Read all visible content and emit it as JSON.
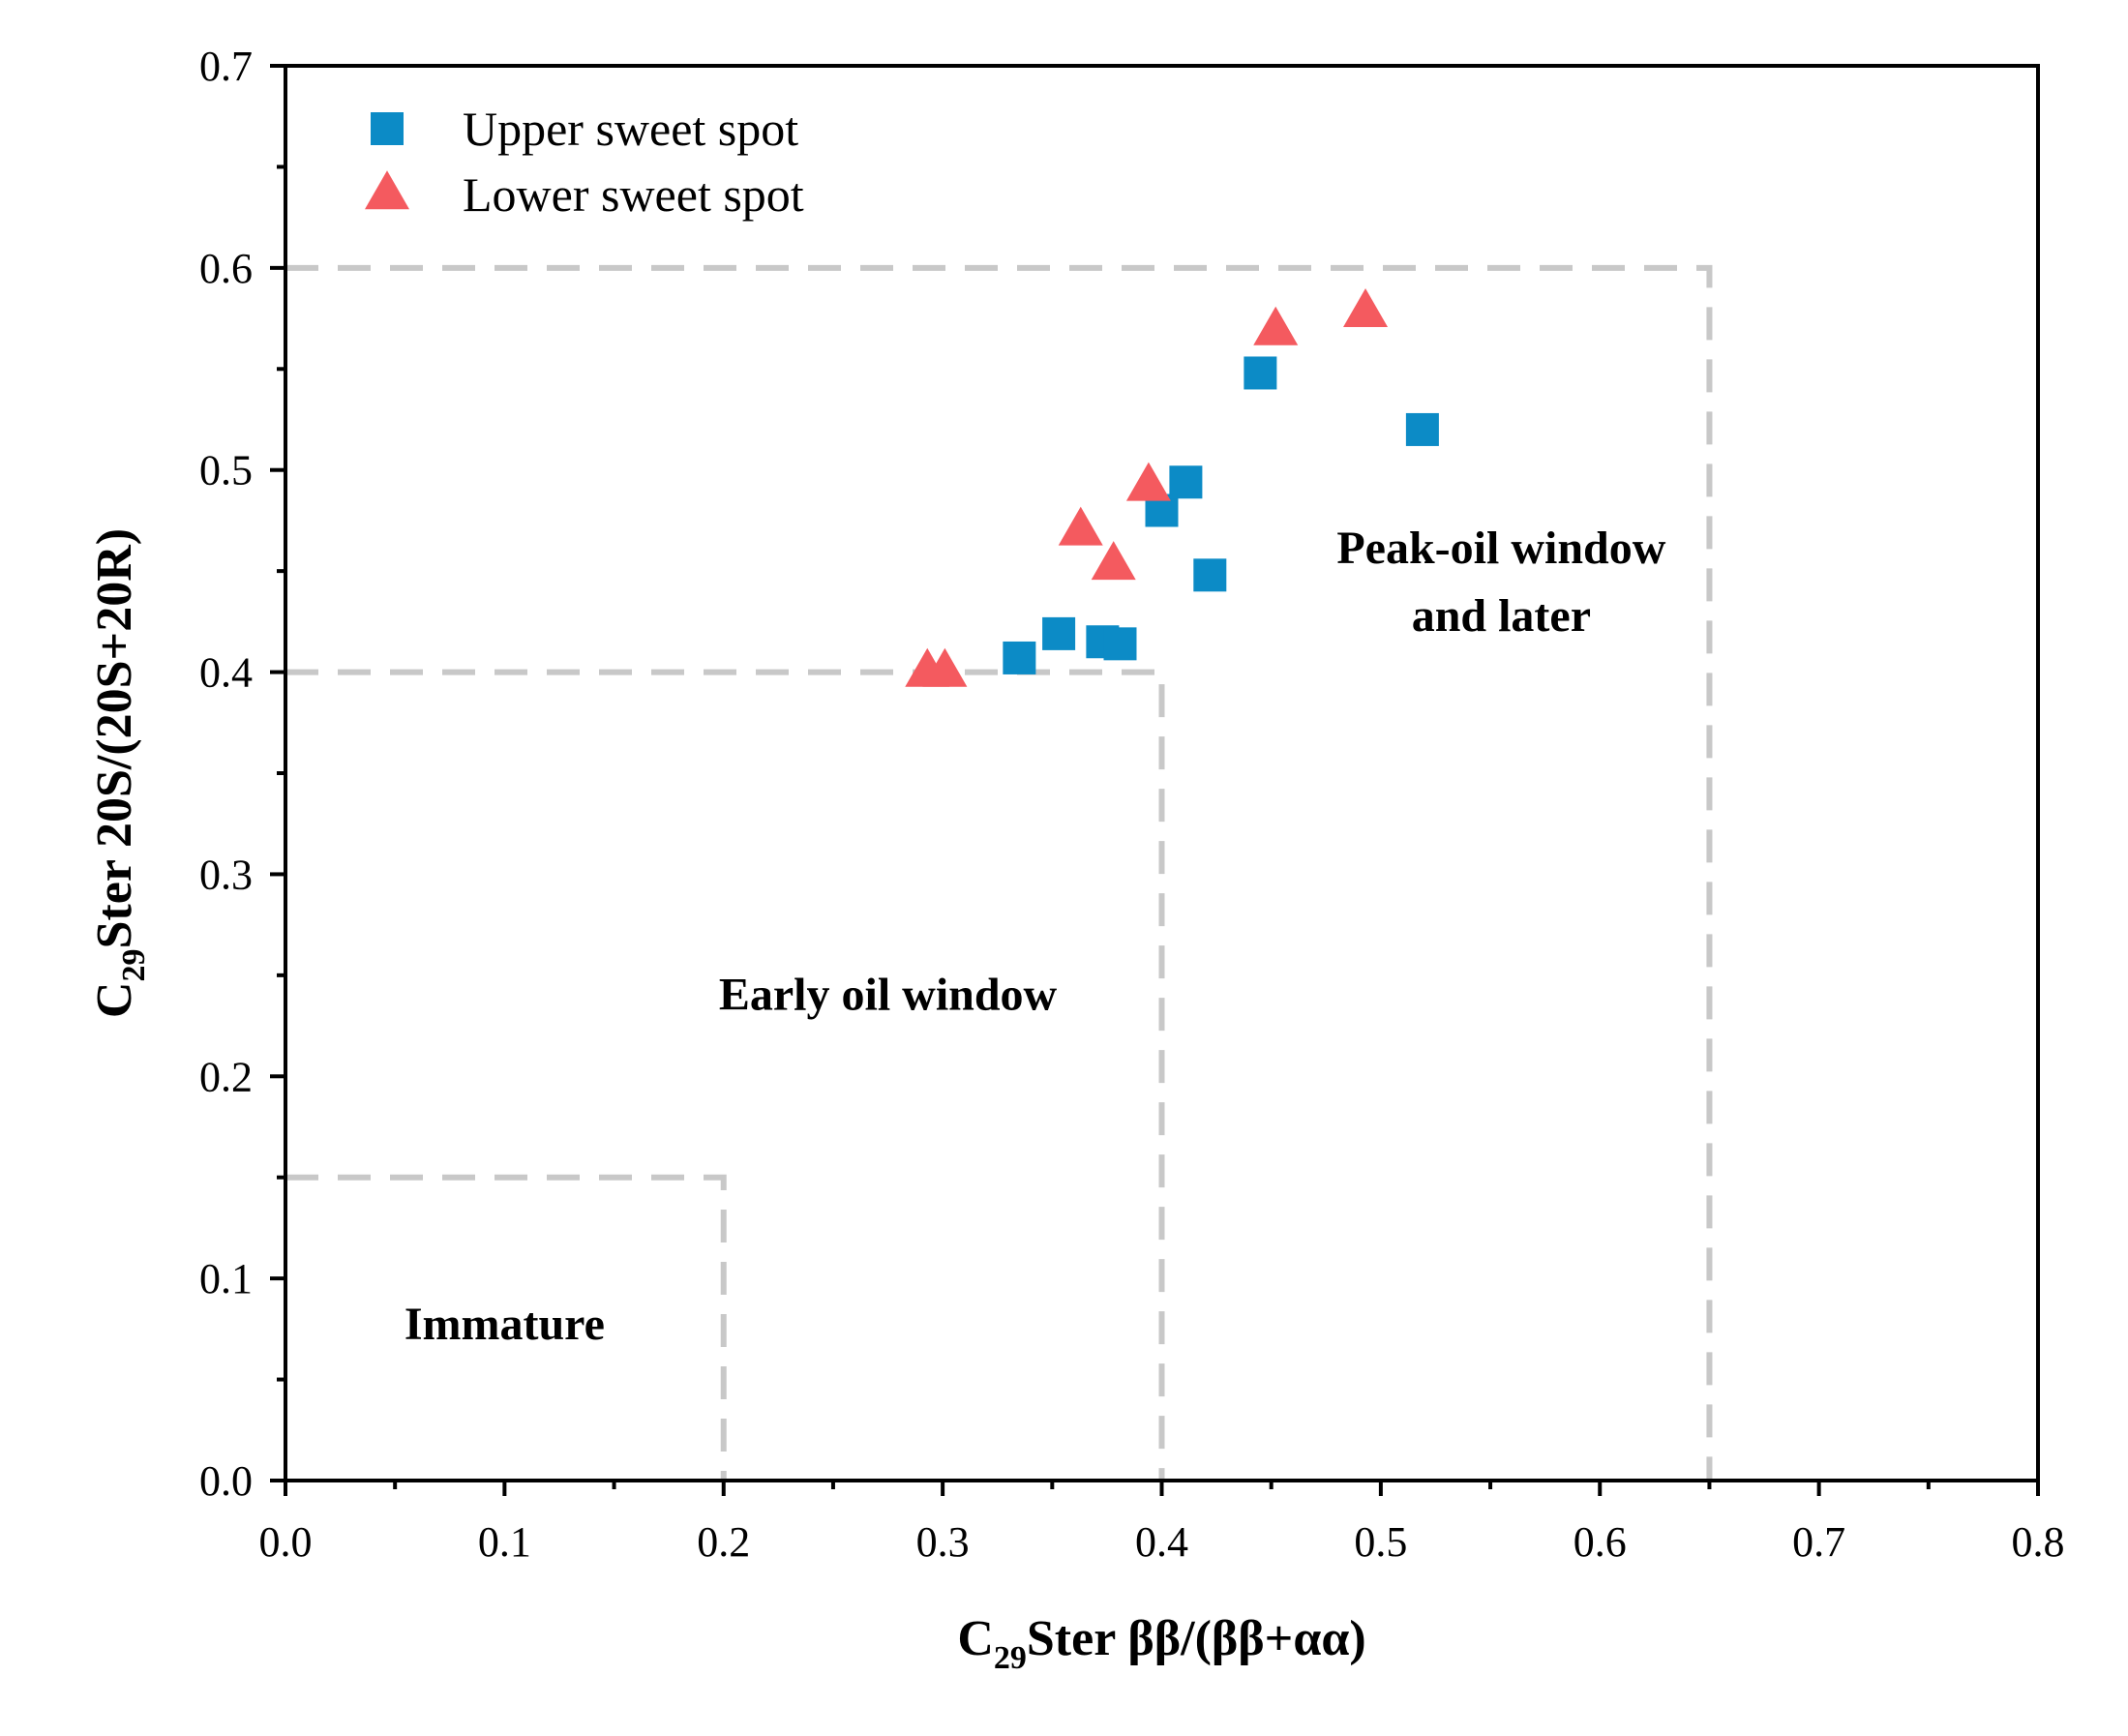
{
  "chart_data": {
    "type": "scatter",
    "xlabel": {
      "prefix": "C",
      "sub": "29",
      "rest": "Ster ββ/(ββ+αα)"
    },
    "ylabel": {
      "prefix": "C",
      "sub": "29",
      "rest": "Ster 20S/(20S+20R)"
    },
    "xlim": [
      0.0,
      0.8
    ],
    "ylim": [
      0.0,
      0.7
    ],
    "xticks": [
      "0.0",
      "0.1",
      "0.2",
      "0.3",
      "0.4",
      "0.5",
      "0.6",
      "0.7",
      "0.8"
    ],
    "yticks": [
      "0.0",
      "0.1",
      "0.2",
      "0.3",
      "0.4",
      "0.5",
      "0.6",
      "0.7"
    ],
    "grid": false,
    "legend_position": "top-left",
    "series": [
      {
        "name": "Upper sweet spot",
        "marker": "square",
        "color": "#0c8bc6",
        "points": [
          {
            "x": 0.335,
            "y": 0.407
          },
          {
            "x": 0.353,
            "y": 0.419
          },
          {
            "x": 0.373,
            "y": 0.415
          },
          {
            "x": 0.381,
            "y": 0.414
          },
          {
            "x": 0.4,
            "y": 0.48
          },
          {
            "x": 0.411,
            "y": 0.494
          },
          {
            "x": 0.422,
            "y": 0.448
          },
          {
            "x": 0.445,
            "y": 0.548
          },
          {
            "x": 0.519,
            "y": 0.52
          }
        ]
      },
      {
        "name": "Lower sweet spot",
        "marker": "triangle",
        "color": "#f45a5f",
        "points": [
          {
            "x": 0.293,
            "y": 0.4
          },
          {
            "x": 0.301,
            "y": 0.4
          },
          {
            "x": 0.363,
            "y": 0.47
          },
          {
            "x": 0.378,
            "y": 0.453
          },
          {
            "x": 0.394,
            "y": 0.492
          },
          {
            "x": 0.452,
            "y": 0.569
          },
          {
            "x": 0.493,
            "y": 0.578
          }
        ]
      }
    ],
    "boundaries": [
      {
        "name": "immature-boundary",
        "path": [
          [
            0.0,
            0.15
          ],
          [
            0.2,
            0.15
          ],
          [
            0.2,
            0.0
          ]
        ]
      },
      {
        "name": "early-oil-boundary",
        "path": [
          [
            0.0,
            0.4
          ],
          [
            0.4,
            0.4
          ],
          [
            0.4,
            0.0
          ]
        ]
      },
      {
        "name": "peak-oil-boundary",
        "path": [
          [
            0.0,
            0.6
          ],
          [
            0.65,
            0.6
          ],
          [
            0.65,
            0.0
          ]
        ]
      }
    ],
    "annotations": [
      {
        "name": "immature-label",
        "lines": [
          "Immature"
        ],
        "x": 0.1,
        "y": 0.07
      },
      {
        "name": "early-oil-label",
        "lines": [
          "Early oil window"
        ],
        "x": 0.275,
        "y": 0.233
      },
      {
        "name": "peak-oil-label",
        "lines": [
          "Peak-oil window",
          "and later"
        ],
        "x": 0.555,
        "y": 0.454
      }
    ]
  }
}
